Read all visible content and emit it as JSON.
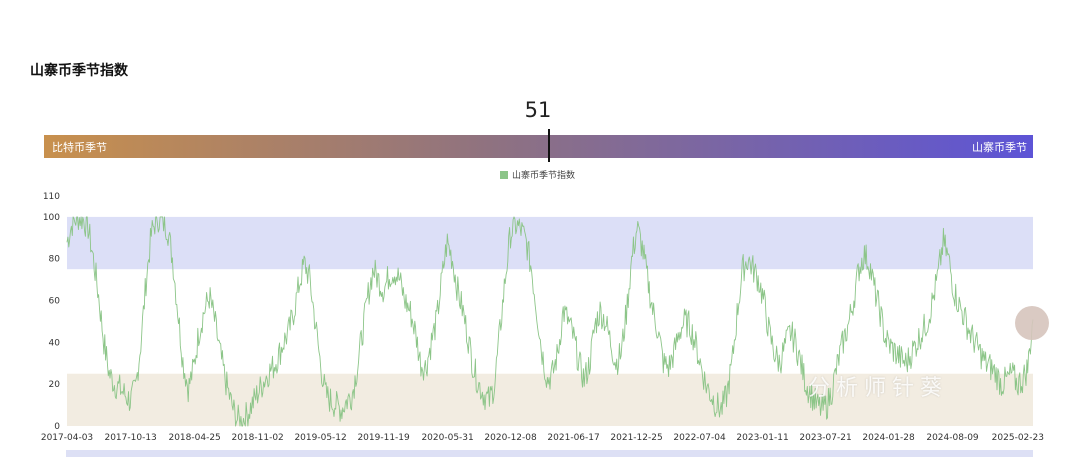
{
  "page": {
    "title": "山寨币季节指数",
    "current_value": "51",
    "gauge": {
      "left_label": "比特币季节",
      "right_label": "山寨币季节",
      "value": 51,
      "range": [
        0,
        100
      ]
    },
    "watermark": "分析师针葵"
  },
  "colors": {
    "line": "#8cc588",
    "altseason_band": "#dcdff7",
    "bitcoin_band": "#f2ece1",
    "gauge_start": "#c8904d",
    "gauge_end": "#5d54d6"
  },
  "chart_data": {
    "type": "line",
    "title": "",
    "legend": [
      "山寨币季节指数"
    ],
    "ylim": [
      0,
      110
    ],
    "y_ticks": [
      0,
      20,
      40,
      60,
      80,
      100,
      110
    ],
    "x_ticks": [
      "2017-04-03",
      "2017-10-13",
      "2018-04-25",
      "2018-11-02",
      "2019-05-12",
      "2019-11-19",
      "2020-05-31",
      "2020-12-08",
      "2021-06-17",
      "2021-12-25",
      "2022-07-04",
      "2023-01-11",
      "2023-07-21",
      "2024-01-28",
      "2024-08-09",
      "2025-02-23"
    ],
    "bands": [
      {
        "name": "altseason",
        "from": 75,
        "to": 100
      },
      {
        "name": "bitcoin",
        "from": 0,
        "to": 25
      }
    ],
    "series": [
      {
        "name": "山寨币季节指数",
        "x_start": "2017-04-03",
        "x_end": "2025-04-10",
        "values": [
          88,
          97,
          100,
          99,
          95,
          80,
          62,
          40,
          25,
          20,
          18,
          15,
          12,
          18,
          40,
          70,
          92,
          100,
          98,
          95,
          80,
          55,
          30,
          18,
          28,
          45,
          55,
          62,
          50,
          35,
          22,
          12,
          4,
          2,
          5,
          10,
          15,
          20,
          25,
          28,
          33,
          40,
          45,
          55,
          68,
          78,
          70,
          50,
          30,
          15,
          12,
          10,
          8,
          12,
          15,
          28,
          45,
          62,
          75,
          70,
          65,
          72,
          74,
          70,
          60,
          55,
          45,
          30,
          28,
          40,
          50,
          70,
          88,
          80,
          65,
          55,
          42,
          28,
          20,
          15,
          12,
          20,
          45,
          70,
          92,
          96,
          94,
          88,
          75,
          55,
          35,
          22,
          25,
          35,
          55,
          50,
          42,
          30,
          22,
          30,
          48,
          55,
          50,
          40,
          30,
          35,
          55,
          80,
          95,
          85,
          70,
          55,
          45,
          30,
          28,
          35,
          45,
          50,
          48,
          40,
          30,
          20,
          15,
          10,
          8,
          15,
          30,
          55,
          75,
          80,
          75,
          70,
          60,
          45,
          35,
          30,
          38,
          45,
          40,
          30,
          20,
          15,
          10,
          8,
          10,
          18,
          30,
          40,
          48,
          60,
          75,
          82,
          78,
          65,
          55,
          42,
          38,
          35,
          32,
          30,
          35,
          40,
          45,
          50,
          60,
          72,
          88,
          80,
          65,
          58,
          52,
          45,
          40,
          35,
          30,
          28,
          25,
          20,
          22,
          25,
          20,
          22,
          28,
          51
        ]
      }
    ]
  }
}
